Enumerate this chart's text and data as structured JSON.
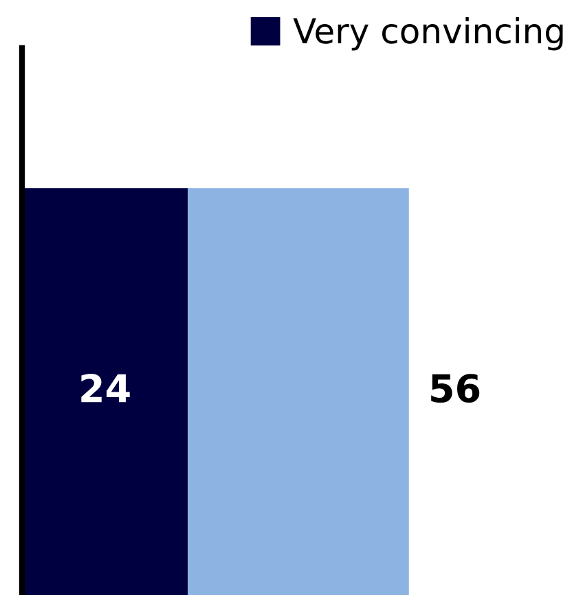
{
  "chart_data": {
    "type": "bar",
    "orientation": "horizontal",
    "stacked": true,
    "categories": [
      null
    ],
    "series": [
      {
        "name": "Very convincing",
        "color": "#000040",
        "values": [
          24
        ],
        "value_labels": [
          "24"
        ]
      },
      {
        "color": "#8db3e2",
        "values": [
          32
        ],
        "value_labels": [
          null
        ]
      }
    ],
    "totals": [
      "56"
    ],
    "legend": "top right"
  }
}
